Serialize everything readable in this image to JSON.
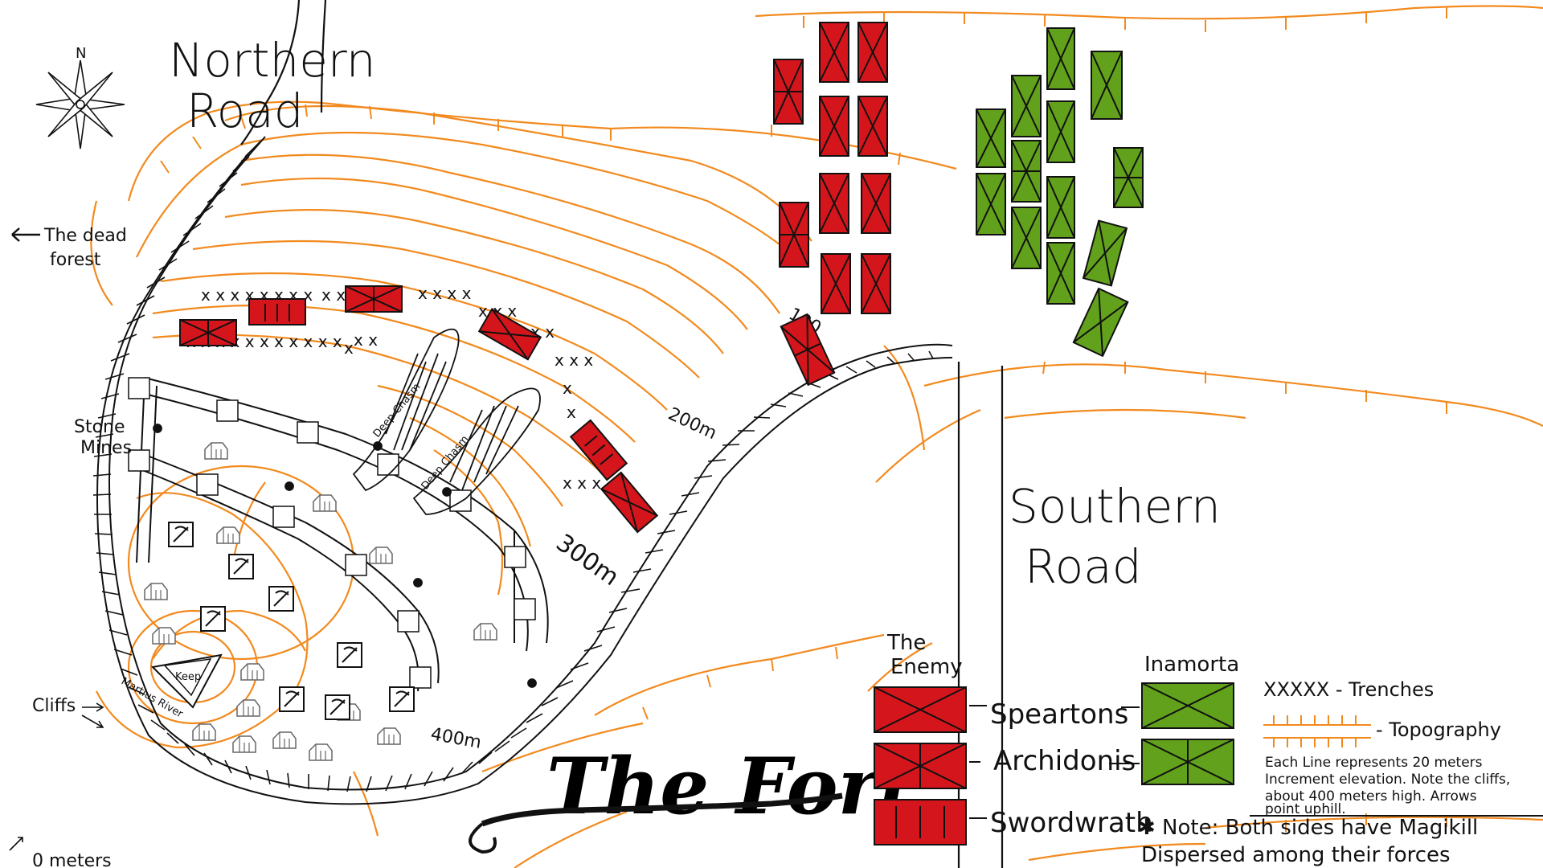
{
  "title": "The Fort",
  "compass": {
    "north_label": "N"
  },
  "labels": {
    "northern_road": [
      "Northern",
      "Road"
    ],
    "southern_road": [
      "Southern",
      "Road"
    ],
    "dead_forest": [
      "The dead",
      "forest"
    ],
    "stone_mines": [
      "Stone",
      "Mines"
    ],
    "cliffs": "Cliffs",
    "keep": "Keep",
    "deep_chasm": "Deep Chasm",
    "elev_100": "100",
    "elev_200": "200m",
    "elev_300": "300m",
    "elev_400": "400m",
    "elev_0": "0 meters",
    "marker_river": "Martius River"
  },
  "legend": {
    "enemy_title": [
      "The",
      "Enemy"
    ],
    "inamorta_title": "Inamorta",
    "units": [
      "Speartons",
      "Archidonis",
      "Swordwrath"
    ],
    "trenches": "XXXXX - Trenches",
    "topography": "- Topography",
    "note_lines": [
      "Each Line represents 20 meters",
      "Increment elevation. Note the cliffs,",
      "about 400 meters high. Arrows",
      "point uphill."
    ],
    "magikill_note": [
      "✱ Note: Both sides have Magikill",
      "Dispersed among their forces"
    ]
  },
  "colors": {
    "enemy": "#d4161c",
    "inamorta": "#62a11c",
    "topography": "#f28a1e",
    "ink": "#111111"
  },
  "icons": [
    "compass-rose-icon",
    "arrow-left-icon",
    "house-icon",
    "mine-icon",
    "keep-icon"
  ]
}
